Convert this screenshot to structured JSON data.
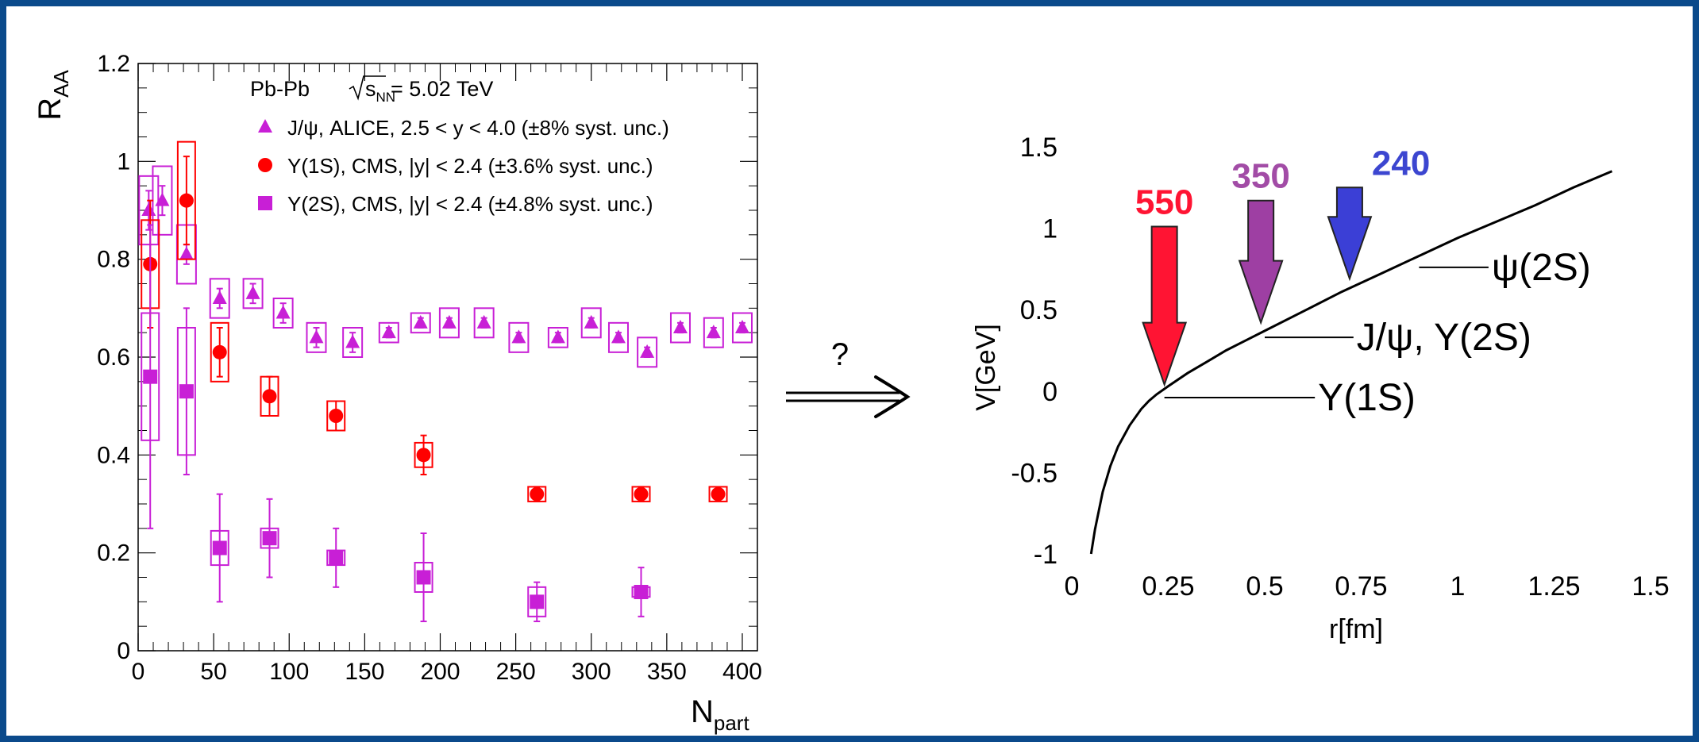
{
  "colors": {
    "frame": "#0b4a8b",
    "magenta": "#c81fd6",
    "red": "#ff0000",
    "arrow_550": "#ff1433",
    "arrow_350": "#9e3fa3",
    "arrow_240": "#3b3fd6",
    "label_550": "#ff1433",
    "label_350": "#a24ca6",
    "label_240": "#3c46d0"
  },
  "transition": {
    "symbol": "?"
  },
  "chart_data": [
    {
      "type": "scatter",
      "title": "",
      "xlabel": {
        "main": "N",
        "sub": "part"
      },
      "ylabel": {
        "main": "R",
        "sub": "AA"
      },
      "xlim": [
        0,
        410
      ],
      "ylim": [
        0,
        1.2
      ],
      "xticks": [
        0,
        50,
        100,
        150,
        200,
        250,
        300,
        350,
        400
      ],
      "xtick_labels": [
        "0",
        "50",
        "100",
        "150",
        "200",
        "250",
        "300",
        "350",
        "400"
      ],
      "yticks": [
        0,
        0.2,
        0.4,
        0.6,
        0.8,
        1,
        1.2
      ],
      "ytick_labels": [
        "0",
        "0.2",
        "0.4",
        "0.6",
        "0.8",
        "1",
        "1.2"
      ],
      "grid": false,
      "legend_position": "top-right",
      "legend_header": {
        "pre": "Pb-Pb ",
        "root": "s",
        "root_sub": "NN",
        "post": " = 5.02 TeV"
      },
      "series": [
        {
          "name": "J/ψ, ALICE, 2.5 < y < 4.0 (±8% syst. unc.)",
          "marker": "triangle",
          "color": "#c81fd6",
          "points": [
            {
              "x": 7,
              "y": 0.9,
              "err": 0.04,
              "sys": 0.07
            },
            {
              "x": 16,
              "y": 0.92,
              "err": 0.03,
              "sys": 0.07
            },
            {
              "x": 32,
              "y": 0.81,
              "err": 0.02,
              "sys": 0.06
            },
            {
              "x": 54,
              "y": 0.72,
              "err": 0.02,
              "sys": 0.04
            },
            {
              "x": 76,
              "y": 0.73,
              "err": 0.02,
              "sys": 0.03
            },
            {
              "x": 96,
              "y": 0.69,
              "err": 0.02,
              "sys": 0.03
            },
            {
              "x": 118,
              "y": 0.64,
              "err": 0.02,
              "sys": 0.03
            },
            {
              "x": 142,
              "y": 0.63,
              "err": 0.02,
              "sys": 0.03
            },
            {
              "x": 166,
              "y": 0.65,
              "err": 0.01,
              "sys": 0.02
            },
            {
              "x": 187,
              "y": 0.67,
              "err": 0.01,
              "sys": 0.02
            },
            {
              "x": 206,
              "y": 0.67,
              "err": 0.01,
              "sys": 0.03
            },
            {
              "x": 229,
              "y": 0.67,
              "err": 0.01,
              "sys": 0.03
            },
            {
              "x": 252,
              "y": 0.64,
              "err": 0.01,
              "sys": 0.03
            },
            {
              "x": 278,
              "y": 0.64,
              "err": 0.01,
              "sys": 0.02
            },
            {
              "x": 300,
              "y": 0.67,
              "err": 0.01,
              "sys": 0.03
            },
            {
              "x": 318,
              "y": 0.64,
              "err": 0.01,
              "sys": 0.03
            },
            {
              "x": 337,
              "y": 0.61,
              "err": 0.01,
              "sys": 0.03
            },
            {
              "x": 359,
              "y": 0.66,
              "err": 0.01,
              "sys": 0.03
            },
            {
              "x": 381,
              "y": 0.65,
              "err": 0.01,
              "sys": 0.03
            },
            {
              "x": 400,
              "y": 0.66,
              "err": 0.01,
              "sys": 0.03
            }
          ]
        },
        {
          "name": "Υ(1S), CMS, |y| < 2.4 (±3.6% syst. unc.)",
          "marker": "circle",
          "color": "#ff0000",
          "points": [
            {
              "x": 8,
              "y": 0.79,
              "err": 0.13,
              "sys": 0.09
            },
            {
              "x": 32,
              "y": 0.92,
              "err": 0.09,
              "sys": 0.12
            },
            {
              "x": 54,
              "y": 0.61,
              "err": 0.05,
              "sys": 0.06
            },
            {
              "x": 87,
              "y": 0.52,
              "err": 0.04,
              "sys": 0.04
            },
            {
              "x": 131,
              "y": 0.48,
              "err": 0.03,
              "sys": 0.03
            },
            {
              "x": 189,
              "y": 0.4,
              "err": 0.04,
              "sys": 0.025
            },
            {
              "x": 264,
              "y": 0.32,
              "err": 0.015,
              "sys": 0.015
            },
            {
              "x": 333,
              "y": 0.32,
              "err": 0.015,
              "sys": 0.015
            },
            {
              "x": 384,
              "y": 0.32,
              "err": 0.01,
              "sys": 0.015
            }
          ]
        },
        {
          "name": "Υ(2S), CMS, |y| < 2.4 (±4.8% syst. unc.)",
          "marker": "square",
          "color": "#c81fd6",
          "points": [
            {
              "x": 8,
              "y": 0.56,
              "err": 0.31,
              "sys": 0.13
            },
            {
              "x": 32,
              "y": 0.53,
              "err": 0.17,
              "sys": 0.13
            },
            {
              "x": 54,
              "y": 0.21,
              "err": 0.11,
              "sys": 0.035
            },
            {
              "x": 87,
              "y": 0.23,
              "err": 0.08,
              "sys": 0.02
            },
            {
              "x": 131,
              "y": 0.19,
              "err": 0.06,
              "sys": 0.015
            },
            {
              "x": 189,
              "y": 0.15,
              "err": 0.09,
              "sys": 0.03
            },
            {
              "x": 264,
              "y": 0.1,
              "err": 0.04,
              "sys": 0.03
            },
            {
              "x": 333,
              "y": 0.12,
              "err": 0.05,
              "sys": 0.01
            }
          ]
        }
      ]
    },
    {
      "type": "line",
      "title": "",
      "xlabel": "r[fm]",
      "ylabel": "V[GeV]",
      "xlim": [
        0,
        1.5
      ],
      "ylim": [
        -1,
        1.5
      ],
      "xticks": [
        0,
        0.25,
        0.5,
        0.75,
        1,
        1.25,
        1.5
      ],
      "xtick_labels": [
        "0",
        "0.25",
        "0.5",
        "0.75",
        "1",
        "1.25",
        "1.5"
      ],
      "yticks": [
        -1,
        -0.5,
        0,
        0.5,
        1,
        1.5
      ],
      "ytick_labels": [
        "-1",
        "-0.5",
        "0",
        "0.5",
        "1",
        "1.5"
      ],
      "grid": false,
      "series": [
        {
          "x": [
            0.05,
            0.06,
            0.08,
            0.1,
            0.12,
            0.15,
            0.18,
            0.2,
            0.22,
            0.25,
            0.3,
            0.35,
            0.4,
            0.45,
            0.5,
            0.6,
            0.7,
            0.8,
            0.9,
            1.0,
            1.1,
            1.2,
            1.3,
            1.4
          ],
          "y": [
            -1.0,
            -0.85,
            -0.62,
            -0.46,
            -0.34,
            -0.21,
            -0.11,
            -0.06,
            -0.02,
            0.03,
            0.11,
            0.18,
            0.25,
            0.31,
            0.37,
            0.49,
            0.61,
            0.72,
            0.83,
            0.94,
            1.04,
            1.14,
            1.25,
            1.35
          ]
        }
      ],
      "state_labels": [
        {
          "text": "Υ(1S)",
          "x0": 0.24,
          "x1": 0.63,
          "y": -0.04
        },
        {
          "text": "J/ψ, Υ(2S)",
          "x0": 0.5,
          "x1": 0.73,
          "y": 0.33
        },
        {
          "text": "ψ(2S)",
          "x0": 0.9,
          "x1": 1.08,
          "y": 0.76
        }
      ],
      "arrows": [
        {
          "label": "550",
          "x": 0.24,
          "y_top": 1.01,
          "y_tip": 0.04,
          "color": "#ff1433"
        },
        {
          "label": "350",
          "x": 0.49,
          "y_top": 1.17,
          "y_tip": 0.42,
          "color": "#9e3fa3"
        },
        {
          "label": "240",
          "x": 0.72,
          "y_top": 1.25,
          "y_tip": 0.69,
          "color": "#3b3fd6"
        }
      ]
    }
  ]
}
